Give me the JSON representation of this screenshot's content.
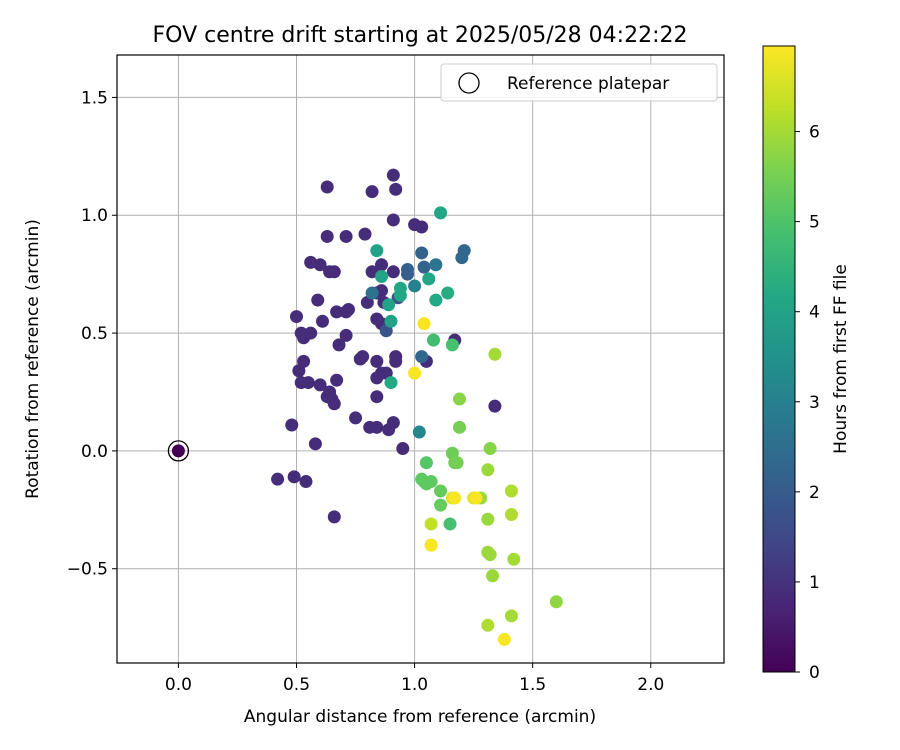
{
  "chart_data": {
    "type": "scatter",
    "title": "FOV centre drift starting at 2025/05/28 04:22:22",
    "xlabel": "Angular distance from reference (arcmin)",
    "ylabel": "Rotation from reference (arcmin)",
    "xlim": [
      -0.26,
      2.31
    ],
    "ylim": [
      -0.9,
      1.68
    ],
    "xticks": [
      0.0,
      0.5,
      1.0,
      1.5,
      2.0
    ],
    "xtick_labels": [
      "0.0",
      "0.5",
      "1.0",
      "1.5",
      "2.0"
    ],
    "yticks": [
      -0.5,
      0.0,
      0.5,
      1.0,
      1.5
    ],
    "ytick_labels": [
      "−0.5",
      "0.0",
      "0.5",
      "1.0",
      "1.5"
    ],
    "grid": true,
    "legend": {
      "placement": "top-right",
      "entries": [
        "Reference platepar"
      ]
    },
    "colorbar": {
      "label": "Hours from first FF file",
      "colormap": "viridis",
      "range": [
        0,
        6.95
      ],
      "ticks": [
        0,
        1,
        2,
        3,
        4,
        5,
        6
      ],
      "tick_labels": [
        "0",
        "1",
        "2",
        "3",
        "4",
        "5",
        "6"
      ]
    },
    "reference_point": {
      "x": 0.0,
      "y": 0.0,
      "name": "Reference platepar"
    },
    "points": [
      {
        "x": 0.0,
        "y": 0.0,
        "c": 0.0
      },
      {
        "x": 0.42,
        "y": -0.12,
        "c": 0.9
      },
      {
        "x": 0.48,
        "y": 0.11,
        "c": 0.9
      },
      {
        "x": 0.49,
        "y": -0.11,
        "c": 0.9
      },
      {
        "x": 0.54,
        "y": -0.13,
        "c": 0.9
      },
      {
        "x": 0.58,
        "y": 0.03,
        "c": 0.9
      },
      {
        "x": 0.66,
        "y": -0.28,
        "c": 0.9
      },
      {
        "x": 0.5,
        "y": 0.57,
        "c": 0.9
      },
      {
        "x": 0.52,
        "y": 0.5,
        "c": 0.9
      },
      {
        "x": 0.53,
        "y": 0.48,
        "c": 0.9
      },
      {
        "x": 0.56,
        "y": 0.5,
        "c": 0.9
      },
      {
        "x": 0.51,
        "y": 0.34,
        "c": 0.9
      },
      {
        "x": 0.53,
        "y": 0.38,
        "c": 0.9
      },
      {
        "x": 0.52,
        "y": 0.29,
        "c": 0.9
      },
      {
        "x": 0.55,
        "y": 0.29,
        "c": 0.9
      },
      {
        "x": 0.59,
        "y": 0.64,
        "c": 0.9
      },
      {
        "x": 0.56,
        "y": 0.8,
        "c": 0.9
      },
      {
        "x": 0.6,
        "y": 0.79,
        "c": 0.9
      },
      {
        "x": 0.64,
        "y": 0.76,
        "c": 0.9
      },
      {
        "x": 0.66,
        "y": 0.76,
        "c": 0.9
      },
      {
        "x": 0.63,
        "y": 0.91,
        "c": 0.9
      },
      {
        "x": 0.63,
        "y": 1.12,
        "c": 0.9
      },
      {
        "x": 0.61,
        "y": 0.55,
        "c": 0.9
      },
      {
        "x": 0.67,
        "y": 0.59,
        "c": 0.9
      },
      {
        "x": 0.71,
        "y": 0.59,
        "c": 0.9
      },
      {
        "x": 0.72,
        "y": 0.6,
        "c": 0.9
      },
      {
        "x": 0.68,
        "y": 0.45,
        "c": 0.9
      },
      {
        "x": 0.71,
        "y": 0.49,
        "c": 0.9
      },
      {
        "x": 0.67,
        "y": 0.3,
        "c": 0.9
      },
      {
        "x": 0.6,
        "y": 0.28,
        "c": 0.9
      },
      {
        "x": 0.63,
        "y": 0.23,
        "c": 0.9
      },
      {
        "x": 0.64,
        "y": 0.25,
        "c": 0.9
      },
      {
        "x": 0.66,
        "y": 0.2,
        "c": 0.9
      },
      {
        "x": 0.65,
        "y": 0.22,
        "c": 0.9
      },
      {
        "x": 0.71,
        "y": 0.91,
        "c": 0.9
      },
      {
        "x": 0.79,
        "y": 0.92,
        "c": 0.9
      },
      {
        "x": 0.82,
        "y": 1.1,
        "c": 0.9
      },
      {
        "x": 0.91,
        "y": 1.17,
        "c": 0.9
      },
      {
        "x": 0.92,
        "y": 1.11,
        "c": 0.9
      },
      {
        "x": 0.91,
        "y": 0.98,
        "c": 0.9
      },
      {
        "x": 1.0,
        "y": 0.96,
        "c": 0.9
      },
      {
        "x": 1.03,
        "y": 0.95,
        "c": 0.9
      },
      {
        "x": 0.82,
        "y": 0.76,
        "c": 0.9
      },
      {
        "x": 0.86,
        "y": 0.79,
        "c": 0.9
      },
      {
        "x": 0.8,
        "y": 0.63,
        "c": 0.9
      },
      {
        "x": 0.84,
        "y": 0.67,
        "c": 0.9
      },
      {
        "x": 0.86,
        "y": 0.68,
        "c": 0.9
      },
      {
        "x": 0.87,
        "y": 0.63,
        "c": 0.9
      },
      {
        "x": 0.91,
        "y": 0.76,
        "c": 0.9
      },
      {
        "x": 0.84,
        "y": 0.56,
        "c": 0.9
      },
      {
        "x": 0.86,
        "y": 0.54,
        "c": 0.9
      },
      {
        "x": 0.78,
        "y": 0.4,
        "c": 0.9
      },
      {
        "x": 0.77,
        "y": 0.39,
        "c": 0.9
      },
      {
        "x": 0.84,
        "y": 0.38,
        "c": 0.9
      },
      {
        "x": 0.84,
        "y": 0.31,
        "c": 0.9
      },
      {
        "x": 0.86,
        "y": 0.33,
        "c": 0.9
      },
      {
        "x": 0.88,
        "y": 0.33,
        "c": 0.9
      },
      {
        "x": 0.92,
        "y": 0.4,
        "c": 0.9
      },
      {
        "x": 0.92,
        "y": 0.38,
        "c": 0.9
      },
      {
        "x": 0.84,
        "y": 0.23,
        "c": 0.9
      },
      {
        "x": 0.75,
        "y": 0.14,
        "c": 0.9
      },
      {
        "x": 0.81,
        "y": 0.1,
        "c": 0.9
      },
      {
        "x": 0.84,
        "y": 0.1,
        "c": 0.9
      },
      {
        "x": 0.89,
        "y": 0.09,
        "c": 0.9
      },
      {
        "x": 0.91,
        "y": 0.12,
        "c": 0.9
      },
      {
        "x": 0.95,
        "y": 0.01,
        "c": 0.9
      },
      {
        "x": 1.05,
        "y": 0.38,
        "c": 0.9
      },
      {
        "x": 1.17,
        "y": 0.47,
        "c": 0.9
      },
      {
        "x": 1.34,
        "y": 0.19,
        "c": 0.9
      },
      {
        "x": 0.93,
        "y": 0.65,
        "c": 1.8
      },
      {
        "x": 0.88,
        "y": 0.51,
        "c": 1.8
      },
      {
        "x": 0.97,
        "y": 0.77,
        "c": 2.1
      },
      {
        "x": 0.97,
        "y": 0.75,
        "c": 2.1
      },
      {
        "x": 1.03,
        "y": 0.84,
        "c": 2.2
      },
      {
        "x": 1.04,
        "y": 0.78,
        "c": 2.2
      },
      {
        "x": 1.21,
        "y": 0.85,
        "c": 2.3
      },
      {
        "x": 1.2,
        "y": 0.82,
        "c": 2.3
      },
      {
        "x": 1.03,
        "y": 0.4,
        "c": 2.3
      },
      {
        "x": 0.82,
        "y": 0.67,
        "c": 2.6
      },
      {
        "x": 1.09,
        "y": 0.79,
        "c": 2.7
      },
      {
        "x": 1.0,
        "y": 0.7,
        "c": 3.0
      },
      {
        "x": 1.02,
        "y": 0.08,
        "c": 3.2
      },
      {
        "x": 0.84,
        "y": 0.85,
        "c": 4.0
      },
      {
        "x": 0.86,
        "y": 0.74,
        "c": 4.0
      },
      {
        "x": 0.89,
        "y": 0.62,
        "c": 4.0
      },
      {
        "x": 0.9,
        "y": 0.55,
        "c": 4.0
      },
      {
        "x": 0.94,
        "y": 0.69,
        "c": 4.1
      },
      {
        "x": 0.94,
        "y": 0.66,
        "c": 4.1
      },
      {
        "x": 1.06,
        "y": 0.73,
        "c": 4.1
      },
      {
        "x": 1.11,
        "y": 1.01,
        "c": 4.1
      },
      {
        "x": 1.09,
        "y": 0.64,
        "c": 4.2
      },
      {
        "x": 1.14,
        "y": 0.67,
        "c": 4.3
      },
      {
        "x": 0.9,
        "y": 0.29,
        "c": 4.2
      },
      {
        "x": 1.08,
        "y": 0.47,
        "c": 4.8
      },
      {
        "x": 1.16,
        "y": 0.45,
        "c": 4.9
      },
      {
        "x": 1.15,
        "y": -0.31,
        "c": 4.9
      },
      {
        "x": 1.05,
        "y": -0.05,
        "c": 5.1
      },
      {
        "x": 1.03,
        "y": -0.12,
        "c": 5.2
      },
      {
        "x": 1.04,
        "y": -0.13,
        "c": 5.2
      },
      {
        "x": 1.05,
        "y": -0.14,
        "c": 5.2
      },
      {
        "x": 1.07,
        "y": -0.13,
        "c": 5.2
      },
      {
        "x": 1.11,
        "y": -0.17,
        "c": 5.3
      },
      {
        "x": 1.11,
        "y": -0.23,
        "c": 5.3
      },
      {
        "x": 1.16,
        "y": -0.01,
        "c": 5.4
      },
      {
        "x": 1.17,
        "y": -0.05,
        "c": 5.5
      },
      {
        "x": 1.18,
        "y": -0.05,
        "c": 5.5
      },
      {
        "x": 1.19,
        "y": 0.1,
        "c": 5.5
      },
      {
        "x": 1.19,
        "y": 0.22,
        "c": 5.7
      },
      {
        "x": 1.32,
        "y": 0.01,
        "c": 5.7
      },
      {
        "x": 1.31,
        "y": -0.08,
        "c": 5.9
      },
      {
        "x": 1.31,
        "y": -0.29,
        "c": 5.9
      },
      {
        "x": 1.28,
        "y": -0.2,
        "c": 5.9
      },
      {
        "x": 1.31,
        "y": -0.43,
        "c": 5.9
      },
      {
        "x": 1.32,
        "y": -0.44,
        "c": 5.9
      },
      {
        "x": 1.33,
        "y": -0.53,
        "c": 5.9
      },
      {
        "x": 1.34,
        "y": 0.41,
        "c": 6.0
      },
      {
        "x": 1.41,
        "y": -0.17,
        "c": 6.1
      },
      {
        "x": 1.41,
        "y": -0.27,
        "c": 6.1
      },
      {
        "x": 1.42,
        "y": -0.46,
        "c": 6.0
      },
      {
        "x": 1.41,
        "y": -0.7,
        "c": 6.0
      },
      {
        "x": 1.31,
        "y": -0.74,
        "c": 6.1
      },
      {
        "x": 1.6,
        "y": -0.64,
        "c": 5.8
      },
      {
        "x": 1.07,
        "y": -0.31,
        "c": 6.3
      },
      {
        "x": 1.07,
        "y": -0.4,
        "c": 6.4
      },
      {
        "x": 1.16,
        "y": -0.2,
        "c": 6.6
      },
      {
        "x": 1.25,
        "y": -0.2,
        "c": 6.6
      },
      {
        "x": 1.04,
        "y": 0.54,
        "c": 6.9
      },
      {
        "x": 1.0,
        "y": 0.33,
        "c": 6.9
      },
      {
        "x": 1.07,
        "y": -0.4,
        "c": 6.9
      },
      {
        "x": 1.17,
        "y": -0.2,
        "c": 6.9
      },
      {
        "x": 1.26,
        "y": -0.2,
        "c": 6.9
      },
      {
        "x": 1.38,
        "y": -0.8,
        "c": 6.9
      }
    ]
  }
}
